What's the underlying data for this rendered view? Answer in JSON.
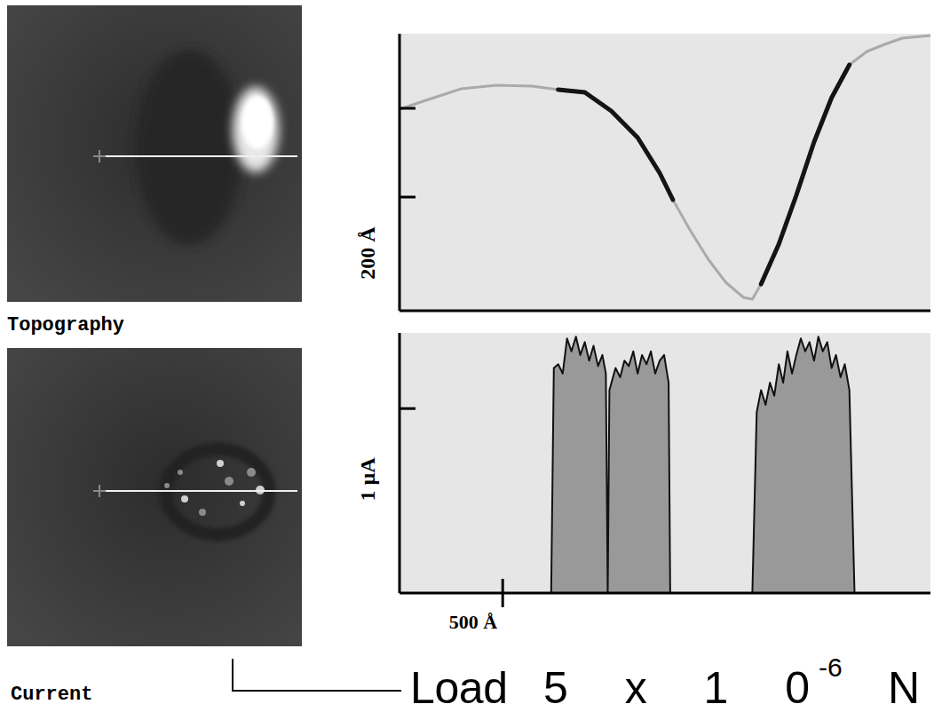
{
  "chart_data": [
    {
      "type": "line",
      "ylabel": "200 Å",
      "tick_labels": false,
      "xlim": [
        0,
        2573
      ],
      "ylim": [
        0,
        624
      ],
      "yticks": [
        256,
        456
      ],
      "x": [
        0,
        128,
        299,
        470,
        641,
        769,
        898,
        1026,
        1154,
        1261,
        1325,
        1410,
        1496,
        1581,
        1667,
        1710,
        1752,
        1838,
        1923,
        2009,
        2094,
        2180,
        2265,
        2351,
        2436,
        2573
      ],
      "series": [
        {
          "color": "#aaaaaa",
          "values": [
            454,
            474,
            500,
            508,
            506,
            498,
            492,
            450,
            390,
            310,
            250,
            180,
            116,
            64,
            30,
            26,
            60,
            150,
            260,
            380,
            480,
            554,
            584,
            600,
            614,
            620
          ]
        },
        {
          "color": "#141414",
          "values": [
            null,
            null,
            null,
            null,
            null,
            498,
            492,
            450,
            390,
            310,
            250,
            null,
            null,
            null,
            null,
            null,
            60,
            150,
            260,
            380,
            480,
            554,
            null,
            null,
            null,
            null
          ]
        }
      ]
    },
    {
      "type": "area",
      "ylabel": "1 µA",
      "tick_labels": "x",
      "xlim": [
        0,
        2573
      ],
      "ylim": [
        0,
        1.41
      ],
      "yticks": [
        1
      ],
      "xticks": [
        {
          "value": 500,
          "label": "500 Å"
        }
      ],
      "x": [
        0,
        735,
        748,
        769,
        791,
        812,
        833,
        855,
        876,
        898,
        919,
        940,
        962,
        983,
        1000,
        1009,
        1017,
        1047,
        1069,
        1090,
        1111,
        1133,
        1154,
        1175,
        1197,
        1218,
        1239,
        1261,
        1282,
        1304,
        1312,
        1710,
        1731,
        1752,
        1774,
        1795,
        1816,
        1838,
        1859,
        1880,
        1902,
        1923,
        1945,
        1966,
        1987,
        2009,
        2030,
        2051,
        2073,
        2094,
        2115,
        2137,
        2158,
        2180,
        2205,
        2573
      ],
      "series": [
        {
          "color": "#999999",
          "values": [
            0,
            0,
            1.22,
            1.24,
            1.19,
            1.38,
            1.31,
            1.39,
            1.29,
            1.36,
            1.26,
            1.34,
            1.23,
            1.29,
            1.19,
            0,
            1.1,
            1.22,
            1.17,
            1.26,
            1.23,
            1.31,
            1.19,
            1.29,
            1.24,
            1.31,
            1.19,
            1.26,
            1.29,
            1.14,
            0,
            0,
            0.98,
            1.1,
            1.02,
            1.14,
            1.07,
            1.24,
            1.14,
            1.31,
            1.19,
            1.29,
            1.38,
            1.31,
            1.36,
            1.26,
            1.39,
            1.31,
            1.36,
            1.22,
            1.29,
            1.17,
            1.24,
            1.1,
            0,
            0
          ]
        }
      ]
    }
  ],
  "images": [
    {
      "label": "Topography"
    },
    {
      "label": "Current"
    }
  ],
  "caption": [
    "Load",
    "5x10",
    "-6",
    "N"
  ]
}
